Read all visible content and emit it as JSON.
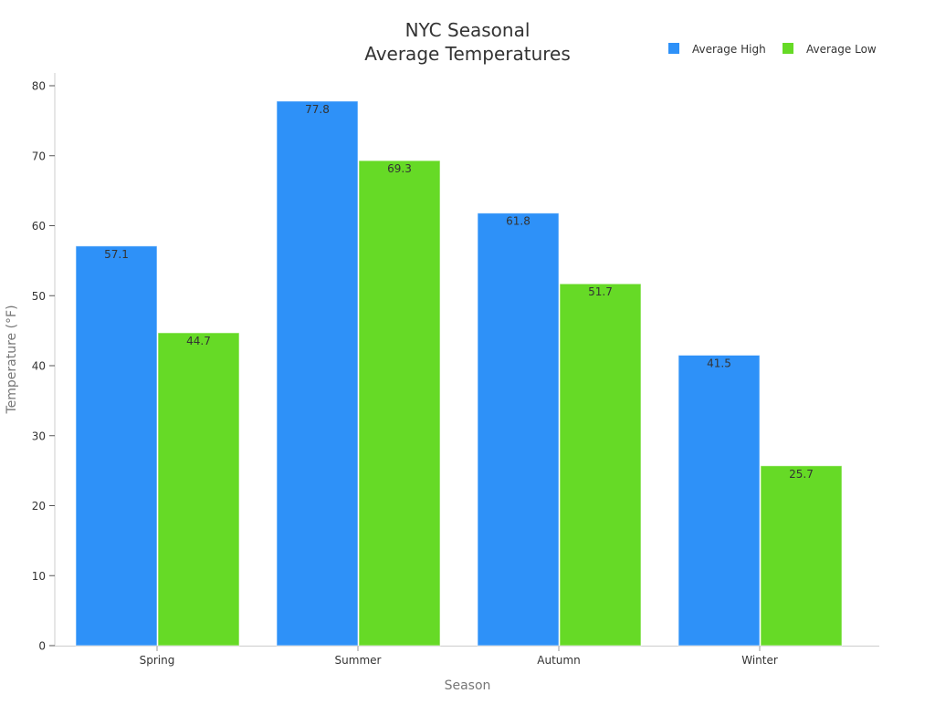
{
  "chart_data": {
    "type": "bar",
    "title": "NYC Seasonal\nAverage Temperatures",
    "title_lines": [
      "NYC Seasonal",
      "Average Temperatures"
    ],
    "xlabel": "Season",
    "ylabel": "Temperature (°F)",
    "categories": [
      "Spring",
      "Summer",
      "Autumn",
      "Winter"
    ],
    "series": [
      {
        "name": "Average High",
        "color": "#2E91F8",
        "values": [
          57.1,
          77.8,
          61.8,
          41.5
        ]
      },
      {
        "name": "Average Low",
        "color": "#66DA26",
        "values": [
          44.7,
          69.3,
          51.7,
          25.7
        ]
      }
    ],
    "ylim": [
      0,
      80
    ],
    "yticks": [
      0,
      10,
      20,
      30,
      40,
      50,
      60,
      70,
      80
    ],
    "grid": false,
    "legend_position": "top-right",
    "data_labels": true
  },
  "colors": {
    "axis": "#cccccc",
    "tick_text": "#333333",
    "axis_label": "#777777",
    "title": "#333333",
    "bar_label": "#333333"
  }
}
